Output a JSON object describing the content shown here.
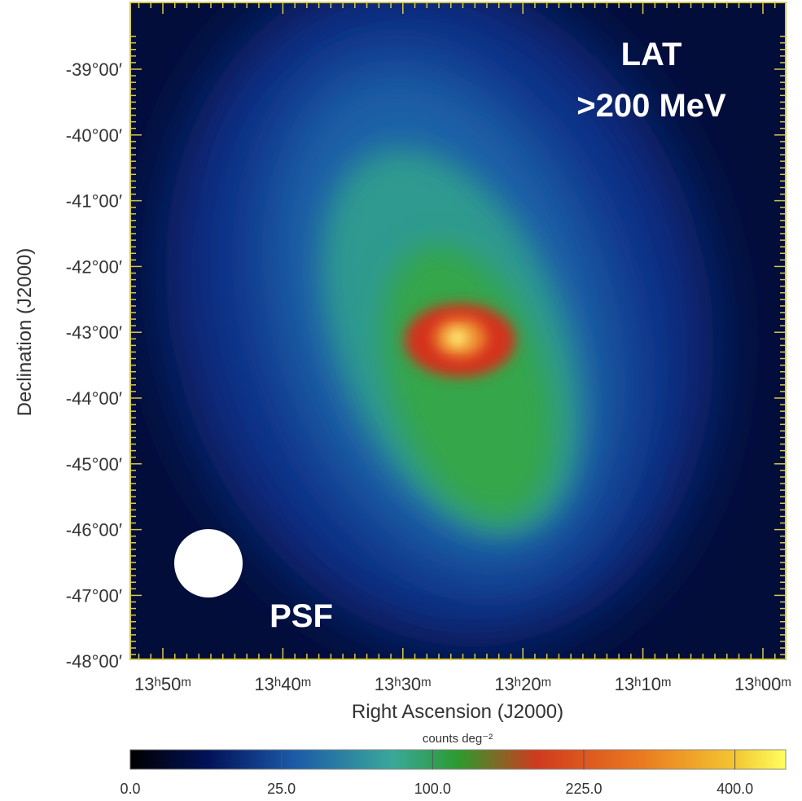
{
  "figure": {
    "annotations": {
      "instrument": "LAT",
      "energy": ">200 MeV",
      "psf": "PSF"
    },
    "x_axis": {
      "label": "Right Ascension (J2000)",
      "ticks": [
        "13ʰ50ᵐ",
        "13ʰ40ᵐ",
        "13ʰ30ᵐ",
        "13ʰ20ᵐ",
        "13ʰ10ᵐ",
        "13ʰ00ᵐ"
      ]
    },
    "y_axis": {
      "label": "Declination (J2000)",
      "ticks": [
        "-39°00′",
        "-40°00′",
        "-41°00′",
        "-42°00′",
        "-43°00′",
        "-44°00′",
        "-45°00′",
        "-46°00′",
        "-47°00′",
        "-48°00′"
      ]
    },
    "colorbar": {
      "label": "counts deg⁻²",
      "scale": "sqrt",
      "lim": [
        0,
        470
      ],
      "ticks": [
        {
          "value": 0,
          "label": "0.0"
        },
        {
          "value": 25,
          "label": "25.0"
        },
        {
          "value": 100,
          "label": "100.0"
        },
        {
          "value": 225,
          "label": "225.0"
        },
        {
          "value": 400,
          "label": "400.0"
        }
      ]
    }
  }
}
